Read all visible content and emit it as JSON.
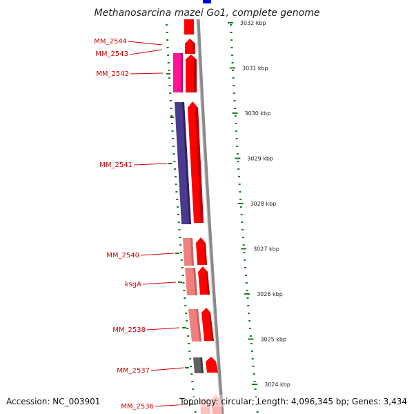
{
  "title": "Methanosarcina mazei Go1, complete genome",
  "footer": {
    "accession": "Accession: NC_003901",
    "topology": "Topology: circular; Length: 4,096,345 bp; Genes: 3,434"
  },
  "colors": {
    "label": "#cc0000",
    "tick": "#1a7a1a",
    "backbone": "#8a8a8a",
    "forward_gene": "#ff0000",
    "blue_marker": "#0000dd"
  },
  "ruler": [
    {
      "label": "3032 kbp"
    },
    {
      "label": "3031 kbp"
    },
    {
      "label": "3030 kbp"
    },
    {
      "label": "3029 kbp"
    },
    {
      "label": "3028 kbp"
    },
    {
      "label": "3027 kbp"
    },
    {
      "label": "3026 kbp"
    },
    {
      "label": "3025 kbp"
    },
    {
      "label": "3024 kbp"
    }
  ],
  "genes": [
    {
      "label": "MM_2544",
      "feature_color": "#ffffff"
    },
    {
      "label": "MM_2543",
      "feature_color": "#ffffff"
    },
    {
      "label": "MM_2542",
      "feature_color": "#ff1493"
    },
    {
      "label": "MM_2541",
      "feature_color": "#4b3b8f"
    },
    {
      "label": "MM_2540",
      "feature_color": "#f08080"
    },
    {
      "label": "ksgA",
      "feature_color": "#f08080"
    },
    {
      "label": "MM_2538",
      "feature_color": "#f08080"
    },
    {
      "label": "MM_2537",
      "feature_color": "#606060"
    },
    {
      "label": "MM_2536",
      "feature_color": "#ffc0c0"
    }
  ]
}
